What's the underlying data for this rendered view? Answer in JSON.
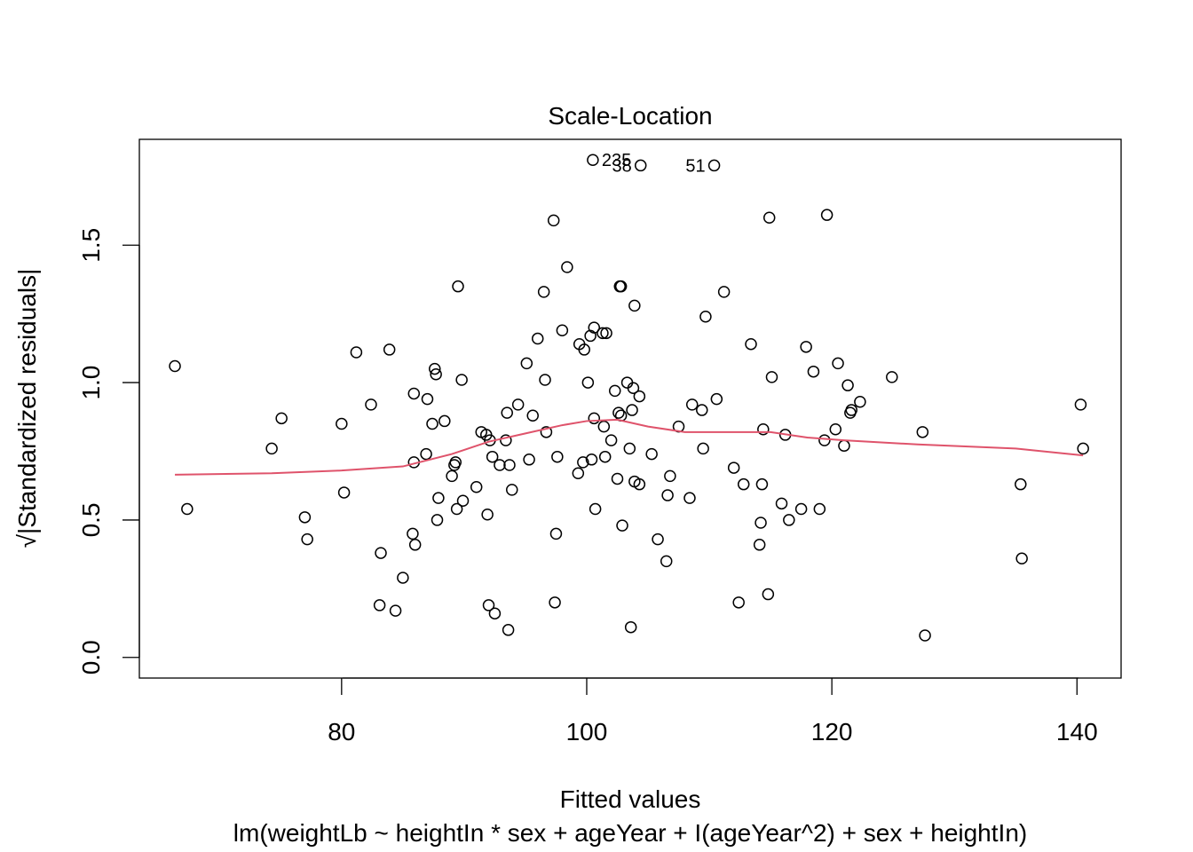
{
  "chart_data": {
    "type": "scatter",
    "title": "Scale-Location",
    "xlabel": "Fitted values",
    "ylabel": "√|Standardized residuals|",
    "subtitle": "lm(weightLb ~ heightIn * sex + ageYear + I(ageYear^2) + sex + heightIn)",
    "xlim": [
      63.5,
      143.6
    ],
    "ylim": [
      -0.075,
      1.885
    ],
    "x_ticks": [
      80,
      100,
      120,
      140
    ],
    "x_tick_labels": [
      "80",
      "100",
      "120",
      "140"
    ],
    "y_ticks": [
      0.0,
      0.5,
      1.0,
      1.5
    ],
    "y_tick_labels": [
      "0.0",
      "0.5",
      "1.0",
      "1.5"
    ],
    "grid": false,
    "point_color": "#000000",
    "smooth_color": "#DF536B",
    "series": [
      {
        "points": [
          [
            66.4,
            1.06
          ],
          [
            67.4,
            0.54
          ],
          [
            74.3,
            0.76
          ],
          [
            75.1,
            0.87
          ],
          [
            77.0,
            0.51
          ],
          [
            77.2,
            0.43
          ],
          [
            80.0,
            0.85
          ],
          [
            80.2,
            0.6
          ],
          [
            81.2,
            1.11
          ],
          [
            82.4,
            0.92
          ],
          [
            83.1,
            0.19
          ],
          [
            83.2,
            0.38
          ],
          [
            83.9,
            1.12
          ],
          [
            84.4,
            0.17
          ],
          [
            85.0,
            0.29
          ],
          [
            85.8,
            0.45
          ],
          [
            85.9,
            0.71
          ],
          [
            85.9,
            0.96
          ],
          [
            86.0,
            0.41
          ],
          [
            86.9,
            0.74
          ],
          [
            87.0,
            0.94
          ],
          [
            87.4,
            0.85
          ],
          [
            87.6,
            1.05
          ],
          [
            87.7,
            1.03
          ],
          [
            87.8,
            0.5
          ],
          [
            87.9,
            0.58
          ],
          [
            88.4,
            0.86
          ],
          [
            89.0,
            0.66
          ],
          [
            89.2,
            0.7
          ],
          [
            89.3,
            0.71
          ],
          [
            89.4,
            0.54
          ],
          [
            89.5,
            1.35
          ],
          [
            89.8,
            1.01
          ],
          [
            89.9,
            0.57
          ],
          [
            91.0,
            0.62
          ],
          [
            91.4,
            0.82
          ],
          [
            91.8,
            0.81
          ],
          [
            91.9,
            0.52
          ],
          [
            92.0,
            0.19
          ],
          [
            92.1,
            0.79
          ],
          [
            92.3,
            0.73
          ],
          [
            92.5,
            0.16
          ],
          [
            92.9,
            0.7
          ],
          [
            93.4,
            0.79
          ],
          [
            93.5,
            0.89
          ],
          [
            93.6,
            0.1
          ],
          [
            93.7,
            0.7
          ],
          [
            93.9,
            0.61
          ],
          [
            94.4,
            0.92
          ],
          [
            95.1,
            1.07
          ],
          [
            95.3,
            0.72
          ],
          [
            95.6,
            0.88
          ],
          [
            96.0,
            1.16
          ],
          [
            96.5,
            1.33
          ],
          [
            96.6,
            1.01
          ],
          [
            96.7,
            0.82
          ],
          [
            97.3,
            1.59
          ],
          [
            97.4,
            0.2
          ],
          [
            97.5,
            0.45
          ],
          [
            97.6,
            0.73
          ],
          [
            98.0,
            1.19
          ],
          [
            98.4,
            1.42
          ],
          [
            99.3,
            0.67
          ],
          [
            99.4,
            1.14
          ],
          [
            99.7,
            0.71
          ],
          [
            99.8,
            1.12
          ],
          [
            100.1,
            1.0
          ],
          [
            100.3,
            1.17
          ],
          [
            100.4,
            0.72
          ],
          [
            100.5,
            1.81
          ],
          [
            100.6,
            1.2
          ],
          [
            100.6,
            0.87
          ],
          [
            100.7,
            0.54
          ],
          [
            101.3,
            1.18
          ],
          [
            101.4,
            0.84
          ],
          [
            101.5,
            0.73
          ],
          [
            101.6,
            1.18
          ],
          [
            102.0,
            0.79
          ],
          [
            102.3,
            0.97
          ],
          [
            102.5,
            0.65
          ],
          [
            102.6,
            0.89
          ],
          [
            102.7,
            1.35
          ],
          [
            102.8,
            0.88
          ],
          [
            102.8,
            1.35
          ],
          [
            102.9,
            0.48
          ],
          [
            103.3,
            1.0
          ],
          [
            103.5,
            0.76
          ],
          [
            103.6,
            0.11
          ],
          [
            103.7,
            0.9
          ],
          [
            103.8,
            0.98
          ],
          [
            103.9,
            1.28
          ],
          [
            103.9,
            0.64
          ],
          [
            104.3,
            0.63
          ],
          [
            104.3,
            0.95
          ],
          [
            104.4,
            1.79
          ],
          [
            105.3,
            0.74
          ],
          [
            105.8,
            0.43
          ],
          [
            106.5,
            0.35
          ],
          [
            106.6,
            0.59
          ],
          [
            106.8,
            0.66
          ],
          [
            107.5,
            0.84
          ],
          [
            108.4,
            0.58
          ],
          [
            108.6,
            0.92
          ],
          [
            109.4,
            0.9
          ],
          [
            109.5,
            0.76
          ],
          [
            109.7,
            1.24
          ],
          [
            110.4,
            1.79
          ],
          [
            110.6,
            0.94
          ],
          [
            111.2,
            1.33
          ],
          [
            112.0,
            0.69
          ],
          [
            112.4,
            0.2
          ],
          [
            112.8,
            0.63
          ],
          [
            113.4,
            1.14
          ],
          [
            114.1,
            0.41
          ],
          [
            114.2,
            0.49
          ],
          [
            114.3,
            0.63
          ],
          [
            114.4,
            0.83
          ],
          [
            114.8,
            0.23
          ],
          [
            114.9,
            1.6
          ],
          [
            115.1,
            1.02
          ],
          [
            115.9,
            0.56
          ],
          [
            116.2,
            0.81
          ],
          [
            116.5,
            0.5
          ],
          [
            117.5,
            0.54
          ],
          [
            117.9,
            1.13
          ],
          [
            118.5,
            1.04
          ],
          [
            119.0,
            0.54
          ],
          [
            119.4,
            0.79
          ],
          [
            119.6,
            1.61
          ],
          [
            120.3,
            0.83
          ],
          [
            120.5,
            1.07
          ],
          [
            121.0,
            0.77
          ],
          [
            121.3,
            0.99
          ],
          [
            121.5,
            0.89
          ],
          [
            121.6,
            0.9
          ],
          [
            122.3,
            0.93
          ],
          [
            124.9,
            1.02
          ],
          [
            127.4,
            0.82
          ],
          [
            127.6,
            0.08
          ],
          [
            135.4,
            0.63
          ],
          [
            135.5,
            0.36
          ],
          [
            140.3,
            0.92
          ],
          [
            140.5,
            0.76
          ]
        ],
        "smooth_line": [
          [
            66.4,
            0.665
          ],
          [
            74.3,
            0.67
          ],
          [
            80.0,
            0.68
          ],
          [
            85.0,
            0.695
          ],
          [
            89.0,
            0.74
          ],
          [
            92.0,
            0.785
          ],
          [
            95.0,
            0.815
          ],
          [
            98.0,
            0.845
          ],
          [
            100.0,
            0.86
          ],
          [
            102.5,
            0.865
          ],
          [
            105.0,
            0.84
          ],
          [
            108.0,
            0.82
          ],
          [
            112.0,
            0.82
          ],
          [
            115.0,
            0.82
          ],
          [
            118.0,
            0.8
          ],
          [
            121.0,
            0.79
          ],
          [
            127.0,
            0.775
          ],
          [
            135.0,
            0.76
          ],
          [
            140.5,
            0.735
          ]
        ]
      }
    ],
    "point_labels": [
      {
        "text": "235",
        "x": 100.5,
        "y": 1.81
      },
      {
        "text": "38",
        "x": 104.4,
        "y": 1.79
      },
      {
        "text": "51",
        "x": 110.4,
        "y": 1.79
      }
    ]
  }
}
